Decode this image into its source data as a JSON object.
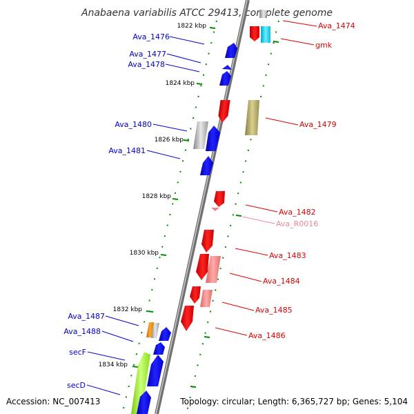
{
  "title": "Anabaena variabilis ATCC 29413, complete genome",
  "footer": {
    "accession": "Accession: NC_007413",
    "topology": "Topology: circular; Length: 6,365,727 bp; Genes: 5,104"
  },
  "ticks": [
    "1822 kbp",
    "1824 kbp",
    "1826 kbp",
    "1828 kbp",
    "1830 kbp",
    "1832 kbp",
    "1834 kbp"
  ],
  "genes_forward": [
    "Ava_1476",
    "Ava_1477",
    "Ava_1478",
    "Ava_1480",
    "Ava_1481",
    "Ava_1487",
    "Ava_1488",
    "secF",
    "secD"
  ],
  "genes_reverse": [
    "Ava_1474",
    "gmk",
    "Ava_1479",
    "Ava_1482",
    "Ava_R0016",
    "Ava_1483",
    "Ava_1484",
    "Ava_1485",
    "Ava_1486"
  ],
  "colors": {
    "forward_label": "#0000cc",
    "reverse_label": "#dd0000",
    "rna_label": "#ee8899",
    "forward_gene": "#0000ee",
    "reverse_gene": "#ee0000",
    "reverse_gene_light": "#f08080",
    "grey_gene": "#a8a8a8",
    "cyan_gene": "#22ccee",
    "olive_gene": "#b0a860",
    "orange_gene": "#ee8800",
    "green_gene": "#99ee33",
    "tick_mark": "#008800",
    "backbone": "#808080"
  }
}
